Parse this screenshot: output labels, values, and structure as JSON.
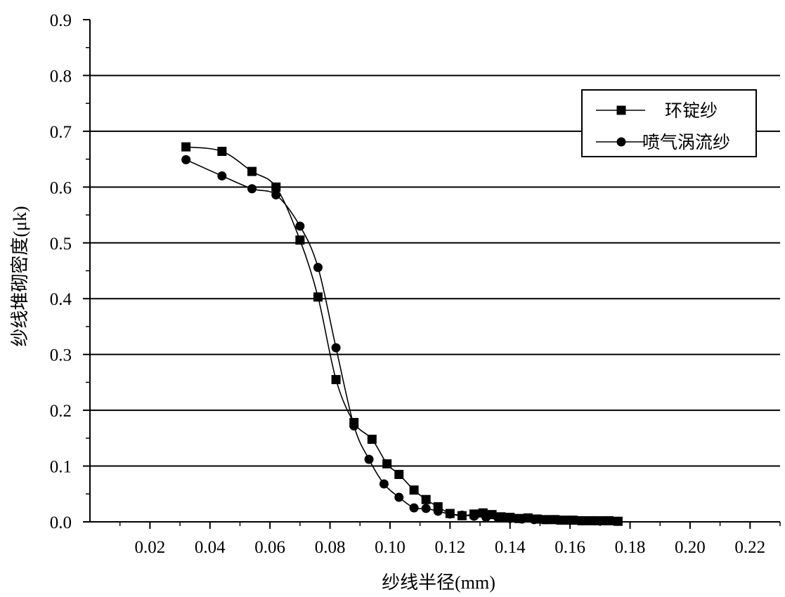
{
  "chart_data": {
    "type": "line",
    "title": "",
    "xlabel": "纱线半径(mm)",
    "ylabel": "纱线堆砌密度(μk)",
    "xlim": [
      0.0,
      0.23
    ],
    "ylim": [
      0.0,
      0.9
    ],
    "x_ticks": [
      "0.02",
      "0.04",
      "0.06",
      "0.08",
      "0.10",
      "0.12",
      "0.14",
      "0.16",
      "0.18",
      "0.20",
      "0.22"
    ],
    "y_ticks": [
      "0.0",
      "0.1",
      "0.2",
      "0.3",
      "0.4",
      "0.5",
      "0.6",
      "0.7",
      "0.8",
      "0.9"
    ],
    "grid": "horizontal",
    "legend_position": "top-right",
    "series": [
      {
        "name": "环锭纱",
        "marker": "square",
        "x": [
          0.032,
          0.044,
          0.054,
          0.062,
          0.07,
          0.076,
          0.082,
          0.088,
          0.094,
          0.099,
          0.103,
          0.108,
          0.112,
          0.116,
          0.12,
          0.124,
          0.128,
          0.131,
          0.134,
          0.137,
          0.14,
          0.143,
          0.146,
          0.149,
          0.152,
          0.155,
          0.158,
          0.161,
          0.164,
          0.167,
          0.17,
          0.173,
          0.176
        ],
        "y": [
          0.672,
          0.664,
          0.628,
          0.6,
          0.505,
          0.403,
          0.255,
          0.178,
          0.148,
          0.104,
          0.085,
          0.057,
          0.04,
          0.027,
          0.015,
          0.011,
          0.014,
          0.016,
          0.013,
          0.009,
          0.008,
          0.006,
          0.007,
          0.005,
          0.004,
          0.004,
          0.003,
          0.003,
          0.002,
          0.002,
          0.002,
          0.002,
          0.001
        ]
      },
      {
        "name": "喷气涡流纱",
        "marker": "circle",
        "x": [
          0.032,
          0.044,
          0.054,
          0.062,
          0.07,
          0.076,
          0.082,
          0.088,
          0.093,
          0.098,
          0.103,
          0.108,
          0.112,
          0.116,
          0.12,
          0.124,
          0.128,
          0.132,
          0.136,
          0.14,
          0.144,
          0.148,
          0.152,
          0.156,
          0.16,
          0.164,
          0.168,
          0.172,
          0.176
        ],
        "y": [
          0.649,
          0.62,
          0.597,
          0.586,
          0.53,
          0.456,
          0.312,
          0.172,
          0.112,
          0.068,
          0.044,
          0.025,
          0.024,
          0.019,
          0.014,
          0.012,
          0.01,
          0.008,
          0.007,
          0.006,
          0.005,
          0.004,
          0.004,
          0.003,
          0.003,
          0.002,
          0.002,
          0.002,
          0.001
        ]
      }
    ]
  }
}
